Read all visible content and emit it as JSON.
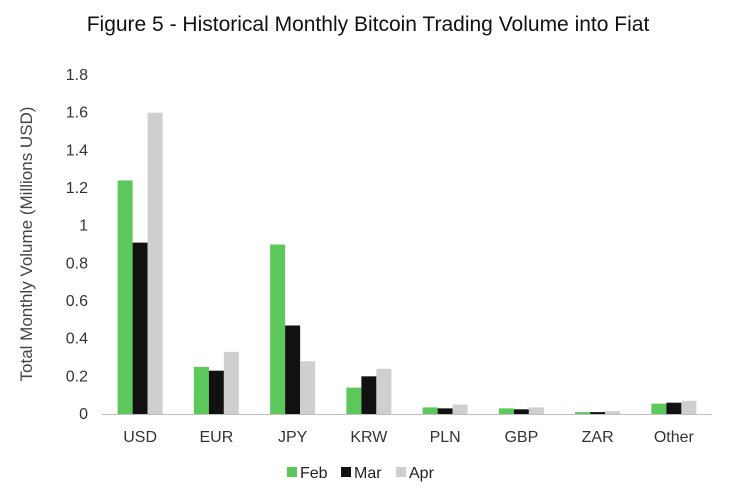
{
  "chart_data": {
    "type": "bar",
    "title": "Figure 5 - Historical Monthly Bitcoin Trading Volume into Fiat",
    "xlabel": "",
    "ylabel": "Total Monthly Volume (Millions USD)",
    "ylim": [
      0,
      1.8
    ],
    "yticks": [
      "0",
      "0.2",
      "0.4",
      "0.6",
      "0.8",
      "1",
      "1.2",
      "1.4",
      "1.6",
      "1.8"
    ],
    "grid": false,
    "legend_position": "bottom",
    "categories": [
      "USD",
      "EUR",
      "JPY",
      "KRW",
      "PLN",
      "GBP",
      "ZAR",
      "Other"
    ],
    "series": [
      {
        "name": "Feb",
        "color": "#5cc85c",
        "values": [
          1.24,
          0.25,
          0.9,
          0.14,
          0.035,
          0.03,
          0.01,
          0.055
        ]
      },
      {
        "name": "Mar",
        "color": "#111111",
        "values": [
          0.91,
          0.23,
          0.47,
          0.2,
          0.03,
          0.025,
          0.01,
          0.06
        ]
      },
      {
        "name": "Apr",
        "color": "#cfcfcf",
        "values": [
          1.6,
          0.33,
          0.28,
          0.24,
          0.05,
          0.035,
          0.015,
          0.07
        ]
      }
    ]
  }
}
